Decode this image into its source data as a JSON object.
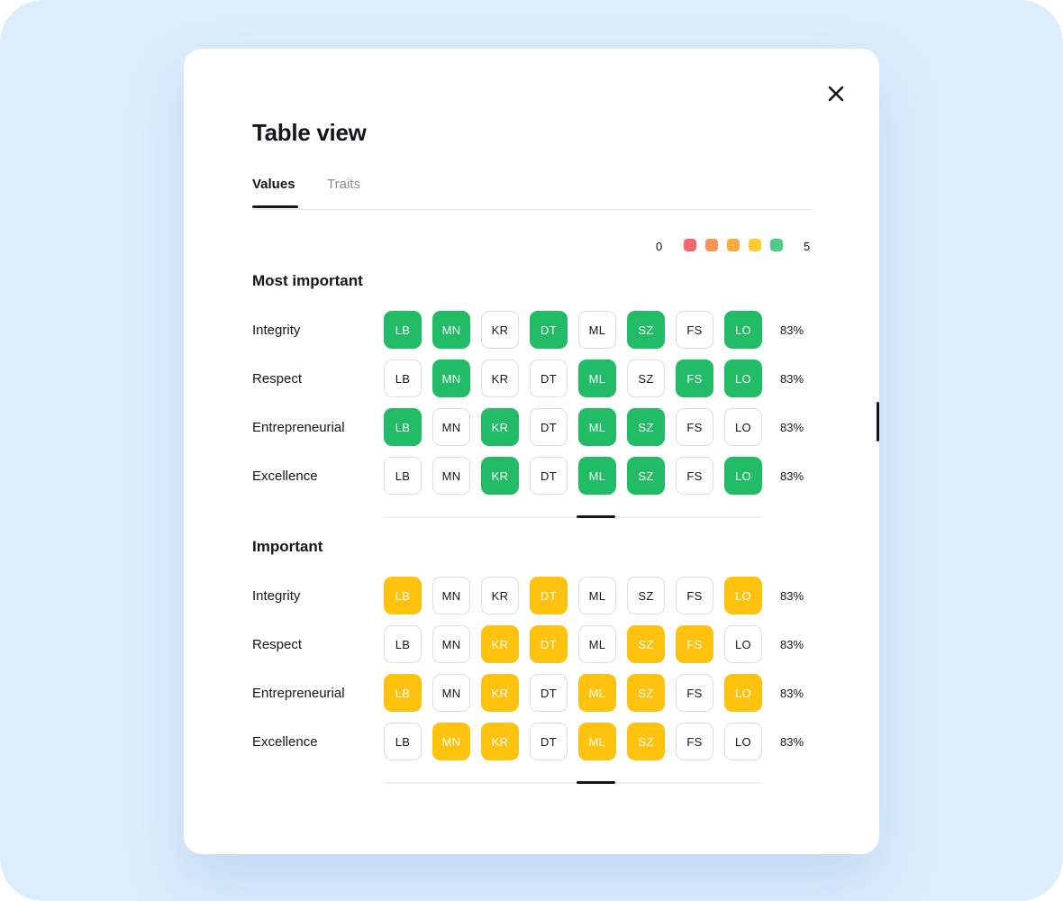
{
  "modal": {
    "title": "Table view",
    "close_icon": "close-icon"
  },
  "tabs": [
    {
      "label": "Values",
      "active": true
    },
    {
      "label": "Traits",
      "active": false
    }
  ],
  "legend": {
    "min_label": "0",
    "max_label": "5",
    "colors": [
      "#f46a6a",
      "#f79558",
      "#f7ab45",
      "#fccc2e",
      "#4ecb84"
    ]
  },
  "columns": [
    "LB",
    "MN",
    "KR",
    "DT",
    "ML",
    "SZ",
    "FS",
    "LO"
  ],
  "status_colors": {
    "green": "#22bb66",
    "yellow": "#ffc20e"
  },
  "sections": [
    {
      "title": "Most important",
      "highlight": "green",
      "rows": [
        {
          "label": "Integrity",
          "filled": [
            1,
            1,
            0,
            1,
            0,
            1,
            0,
            1
          ],
          "pct": "83%"
        },
        {
          "label": "Respect",
          "filled": [
            0,
            1,
            0,
            0,
            1,
            0,
            1,
            1
          ],
          "pct": "83%"
        },
        {
          "label": "Entrepreneurial",
          "filled": [
            1,
            0,
            1,
            0,
            1,
            1,
            0,
            0
          ],
          "pct": "83%"
        },
        {
          "label": "Excellence",
          "filled": [
            0,
            0,
            1,
            0,
            1,
            1,
            0,
            1
          ],
          "pct": "83%"
        }
      ]
    },
    {
      "title": "Important",
      "highlight": "yellow",
      "rows": [
        {
          "label": "Integrity",
          "filled": [
            1,
            0,
            0,
            1,
            0,
            0,
            0,
            1
          ],
          "pct": "83%"
        },
        {
          "label": "Respect",
          "filled": [
            0,
            0,
            1,
            1,
            0,
            1,
            1,
            0
          ],
          "pct": "83%"
        },
        {
          "label": "Entrepreneurial",
          "filled": [
            1,
            0,
            1,
            0,
            1,
            1,
            0,
            1
          ],
          "pct": "83%"
        },
        {
          "label": "Excellence",
          "filled": [
            0,
            1,
            1,
            0,
            1,
            1,
            0,
            0
          ],
          "pct": "83%"
        }
      ]
    }
  ]
}
